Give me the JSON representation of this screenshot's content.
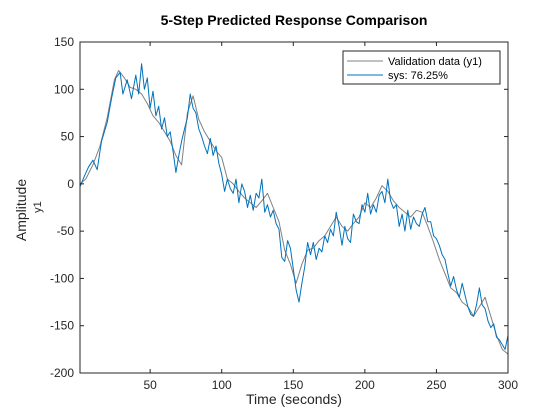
{
  "chart_data": {
    "type": "line",
    "title": "5-Step Predicted Response Comparison",
    "xlabel": "Time (seconds)",
    "ylabel": "Amplitude",
    "ylabel_sub": "y1",
    "xlim": [
      1,
      300
    ],
    "ylim": [
      -200,
      150
    ],
    "xticks": [
      50,
      100,
      150,
      200,
      250,
      300
    ],
    "yticks": [
      150,
      100,
      50,
      0,
      -50,
      -100,
      -150,
      -200
    ],
    "grid": false,
    "legend_position": "top-right",
    "series": [
      {
        "name": "Validation data (y1)",
        "color": "#808080",
        "points": [
          [
            1,
            0
          ],
          [
            5,
            5
          ],
          [
            10,
            20
          ],
          [
            15,
            40
          ],
          [
            20,
            70
          ],
          [
            25,
            110
          ],
          [
            28,
            120
          ],
          [
            32,
            112
          ],
          [
            36,
            102
          ],
          [
            40,
            100
          ],
          [
            44,
            95
          ],
          [
            48,
            85
          ],
          [
            52,
            72
          ],
          [
            56,
            65
          ],
          [
            60,
            55
          ],
          [
            64,
            45
          ],
          [
            68,
            30
          ],
          [
            72,
            20
          ],
          [
            76,
            75
          ],
          [
            80,
            93
          ],
          [
            84,
            68
          ],
          [
            88,
            55
          ],
          [
            92,
            45
          ],
          [
            96,
            35
          ],
          [
            100,
            28
          ],
          [
            104,
            5
          ],
          [
            108,
            0
          ],
          [
            112,
            -8
          ],
          [
            116,
            -15
          ],
          [
            120,
            -20
          ],
          [
            124,
            -25
          ],
          [
            128,
            -18
          ],
          [
            132,
            -10
          ],
          [
            136,
            -25
          ],
          [
            140,
            -40
          ],
          [
            144,
            -70
          ],
          [
            148,
            -85
          ],
          [
            152,
            -105
          ],
          [
            156,
            -85
          ],
          [
            160,
            -70
          ],
          [
            164,
            -68
          ],
          [
            168,
            -60
          ],
          [
            172,
            -55
          ],
          [
            176,
            -45
          ],
          [
            180,
            -35
          ],
          [
            184,
            -45
          ],
          [
            188,
            -50
          ],
          [
            192,
            -42
          ],
          [
            196,
            -35
          ],
          [
            200,
            -20
          ],
          [
            204,
            -25
          ],
          [
            208,
            -15
          ],
          [
            212,
            -2
          ],
          [
            216,
            -8
          ],
          [
            220,
            -18
          ],
          [
            224,
            -25
          ],
          [
            228,
            -30
          ],
          [
            232,
            -35
          ],
          [
            236,
            -28
          ],
          [
            240,
            -30
          ],
          [
            244,
            -45
          ],
          [
            248,
            -62
          ],
          [
            252,
            -80
          ],
          [
            256,
            -95
          ],
          [
            260,
            -110
          ],
          [
            264,
            -115
          ],
          [
            268,
            -125
          ],
          [
            272,
            -130
          ],
          [
            276,
            -140
          ],
          [
            280,
            -130
          ],
          [
            284,
            -120
          ],
          [
            288,
            -140
          ],
          [
            292,
            -160
          ],
          [
            296,
            -175
          ],
          [
            300,
            -180
          ]
        ]
      },
      {
        "name": "sys: 76.25%",
        "color": "#0072BD",
        "points": [
          [
            1,
            -3
          ],
          [
            4,
            8
          ],
          [
            7,
            18
          ],
          [
            10,
            25
          ],
          [
            13,
            15
          ],
          [
            16,
            45
          ],
          [
            20,
            65
          ],
          [
            23,
            90
          ],
          [
            26,
            112
          ],
          [
            29,
            118
          ],
          [
            31,
            95
          ],
          [
            34,
            110
          ],
          [
            37,
            90
          ],
          [
            40,
            115
          ],
          [
            42,
            95
          ],
          [
            44,
            127
          ],
          [
            46,
            100
          ],
          [
            48,
            112
          ],
          [
            50,
            80
          ],
          [
            52,
            98
          ],
          [
            54,
            72
          ],
          [
            56,
            82
          ],
          [
            58,
            58
          ],
          [
            60,
            70
          ],
          [
            62,
            50
          ],
          [
            64,
            55
          ],
          [
            66,
            35
          ],
          [
            68,
            12
          ],
          [
            70,
            30
          ],
          [
            72,
            45
          ],
          [
            74,
            58
          ],
          [
            76,
            70
          ],
          [
            78,
            95
          ],
          [
            80,
            80
          ],
          [
            82,
            75
          ],
          [
            84,
            58
          ],
          [
            86,
            50
          ],
          [
            88,
            40
          ],
          [
            90,
            32
          ],
          [
            92,
            48
          ],
          [
            94,
            30
          ],
          [
            96,
            40
          ],
          [
            98,
            22
          ],
          [
            100,
            10
          ],
          [
            102,
            -8
          ],
          [
            104,
            5
          ],
          [
            106,
            -5
          ],
          [
            108,
            -10
          ],
          [
            110,
            5
          ],
          [
            112,
            -20
          ],
          [
            114,
            0
          ],
          [
            116,
            -8
          ],
          [
            118,
            -25
          ],
          [
            120,
            -12
          ],
          [
            122,
            -28
          ],
          [
            124,
            -10
          ],
          [
            126,
            -15
          ],
          [
            128,
            5
          ],
          [
            130,
            -30
          ],
          [
            132,
            -22
          ],
          [
            134,
            -35
          ],
          [
            136,
            -28
          ],
          [
            138,
            -42
          ],
          [
            140,
            -48
          ],
          [
            142,
            -78
          ],
          [
            144,
            -82
          ],
          [
            146,
            -60
          ],
          [
            148,
            -68
          ],
          [
            150,
            -90
          ],
          [
            152,
            -112
          ],
          [
            154,
            -125
          ],
          [
            156,
            -105
          ],
          [
            158,
            -88
          ],
          [
            160,
            -62
          ],
          [
            162,
            -75
          ],
          [
            164,
            -62
          ],
          [
            166,
            -80
          ],
          [
            168,
            -68
          ],
          [
            170,
            -72
          ],
          [
            172,
            -55
          ],
          [
            174,
            -62
          ],
          [
            176,
            -48
          ],
          [
            178,
            -55
          ],
          [
            180,
            -30
          ],
          [
            182,
            -45
          ],
          [
            184,
            -65
          ],
          [
            186,
            -45
          ],
          [
            188,
            -58
          ],
          [
            190,
            -62
          ],
          [
            192,
            -32
          ],
          [
            194,
            -40
          ],
          [
            196,
            -42
          ],
          [
            198,
            -22
          ],
          [
            200,
            -30
          ],
          [
            202,
            -10
          ],
          [
            204,
            -32
          ],
          [
            206,
            -22
          ],
          [
            208,
            -30
          ],
          [
            210,
            -12
          ],
          [
            212,
            -8
          ],
          [
            214,
            -20
          ],
          [
            216,
            5
          ],
          [
            218,
            -18
          ],
          [
            220,
            -26
          ],
          [
            222,
            -22
          ],
          [
            224,
            -45
          ],
          [
            226,
            -32
          ],
          [
            228,
            -50
          ],
          [
            230,
            -28
          ],
          [
            232,
            -48
          ],
          [
            234,
            -35
          ],
          [
            236,
            -42
          ],
          [
            238,
            -45
          ],
          [
            240,
            -32
          ],
          [
            242,
            -25
          ],
          [
            244,
            -40
          ],
          [
            246,
            -40
          ],
          [
            248,
            -55
          ],
          [
            250,
            -58
          ],
          [
            252,
            -65
          ],
          [
            254,
            -75
          ],
          [
            256,
            -80
          ],
          [
            258,
            -95
          ],
          [
            260,
            -108
          ],
          [
            262,
            -98
          ],
          [
            264,
            -112
          ],
          [
            266,
            -120
          ],
          [
            268,
            -105
          ],
          [
            270,
            -118
          ],
          [
            272,
            -130
          ],
          [
            274,
            -138
          ],
          [
            276,
            -140
          ],
          [
            278,
            -128
          ],
          [
            280,
            -110
          ],
          [
            282,
            -128
          ],
          [
            284,
            -132
          ],
          [
            286,
            -145
          ],
          [
            288,
            -152
          ],
          [
            290,
            -148
          ],
          [
            292,
            -162
          ],
          [
            294,
            -165
          ],
          [
            296,
            -170
          ],
          [
            298,
            -175
          ],
          [
            300,
            -160
          ]
        ]
      }
    ]
  }
}
